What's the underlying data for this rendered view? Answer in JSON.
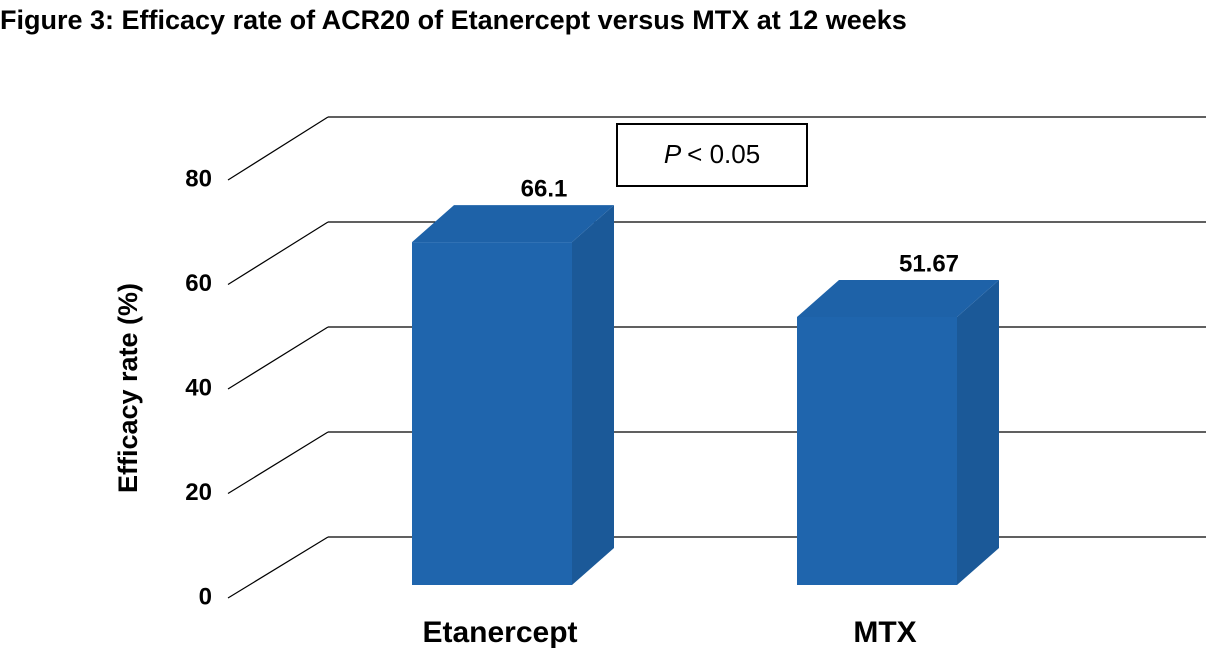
{
  "chart_data": {
    "type": "bar3d",
    "title": "Figure 3: Efficacy rate of ACR20 of Etanercept versus MTX at 12 weeks",
    "y_label": "Efficacy rate (%)",
    "categories": [
      "Etanercept",
      "MTX"
    ],
    "values": [
      66.1,
      51.67
    ],
    "color": "#1f65ad",
    "ylim": [
      0,
      80
    ],
    "yticks": [
      0,
      20,
      40,
      60,
      80
    ],
    "grid": true,
    "annotation": {
      "symbol": "P",
      "text": "< 0.05"
    }
  }
}
